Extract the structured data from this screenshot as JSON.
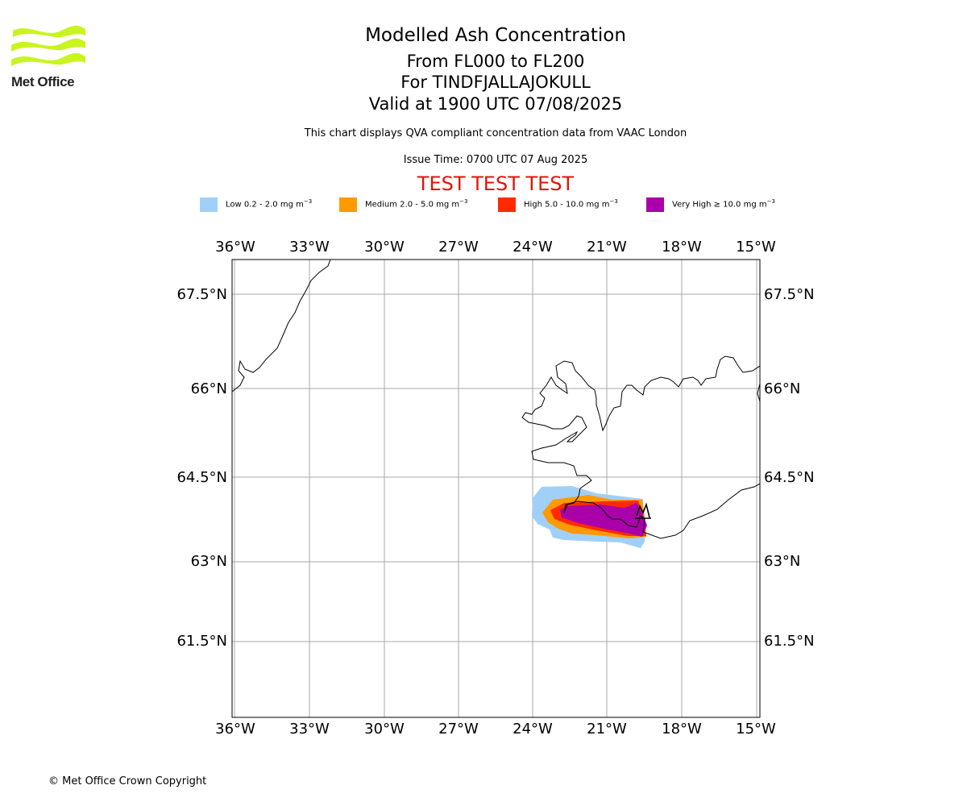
{
  "logo": {
    "text": "Met Office",
    "color": "#c8f51e"
  },
  "header": {
    "title": "Modelled Ash Concentration",
    "level_range": "From FL000 to FL200",
    "volcano": "For TINDFJALLAJOKULL",
    "valid": "Valid at 1900 UTC 07/08/2025",
    "description": "This chart displays QVA compliant concentration data from VAAC London",
    "issue_time": "Issue Time: 0700 UTC 07 Aug 2025",
    "test_banner": "TEST TEST TEST"
  },
  "legend": [
    {
      "label": "Low 0.2 - 2.0 mg m",
      "color": "#a0d0f8"
    },
    {
      "label": "Medium 2.0 - 5.0 mg m",
      "color": "#ff9a00"
    },
    {
      "label": "High 5.0 - 10.0 mg m",
      "color": "#ff2a00"
    },
    {
      "label": "Very High ≥ 10.0 mg m",
      "color": "#aa00aa"
    }
  ],
  "legend_unit_exponent": "−3",
  "map": {
    "lon_ticks": [
      "36°W",
      "33°W",
      "30°W",
      "27°W",
      "24°W",
      "21°W",
      "18°W",
      "15°W"
    ],
    "lat_ticks": [
      "67.5°N",
      "66°N",
      "64.5°N",
      "63°N",
      "61.5°N"
    ],
    "grid": true,
    "gridline_color": "#aaaaaa"
  },
  "footer": {
    "copyright": "© Met Office Crown Copyright"
  }
}
